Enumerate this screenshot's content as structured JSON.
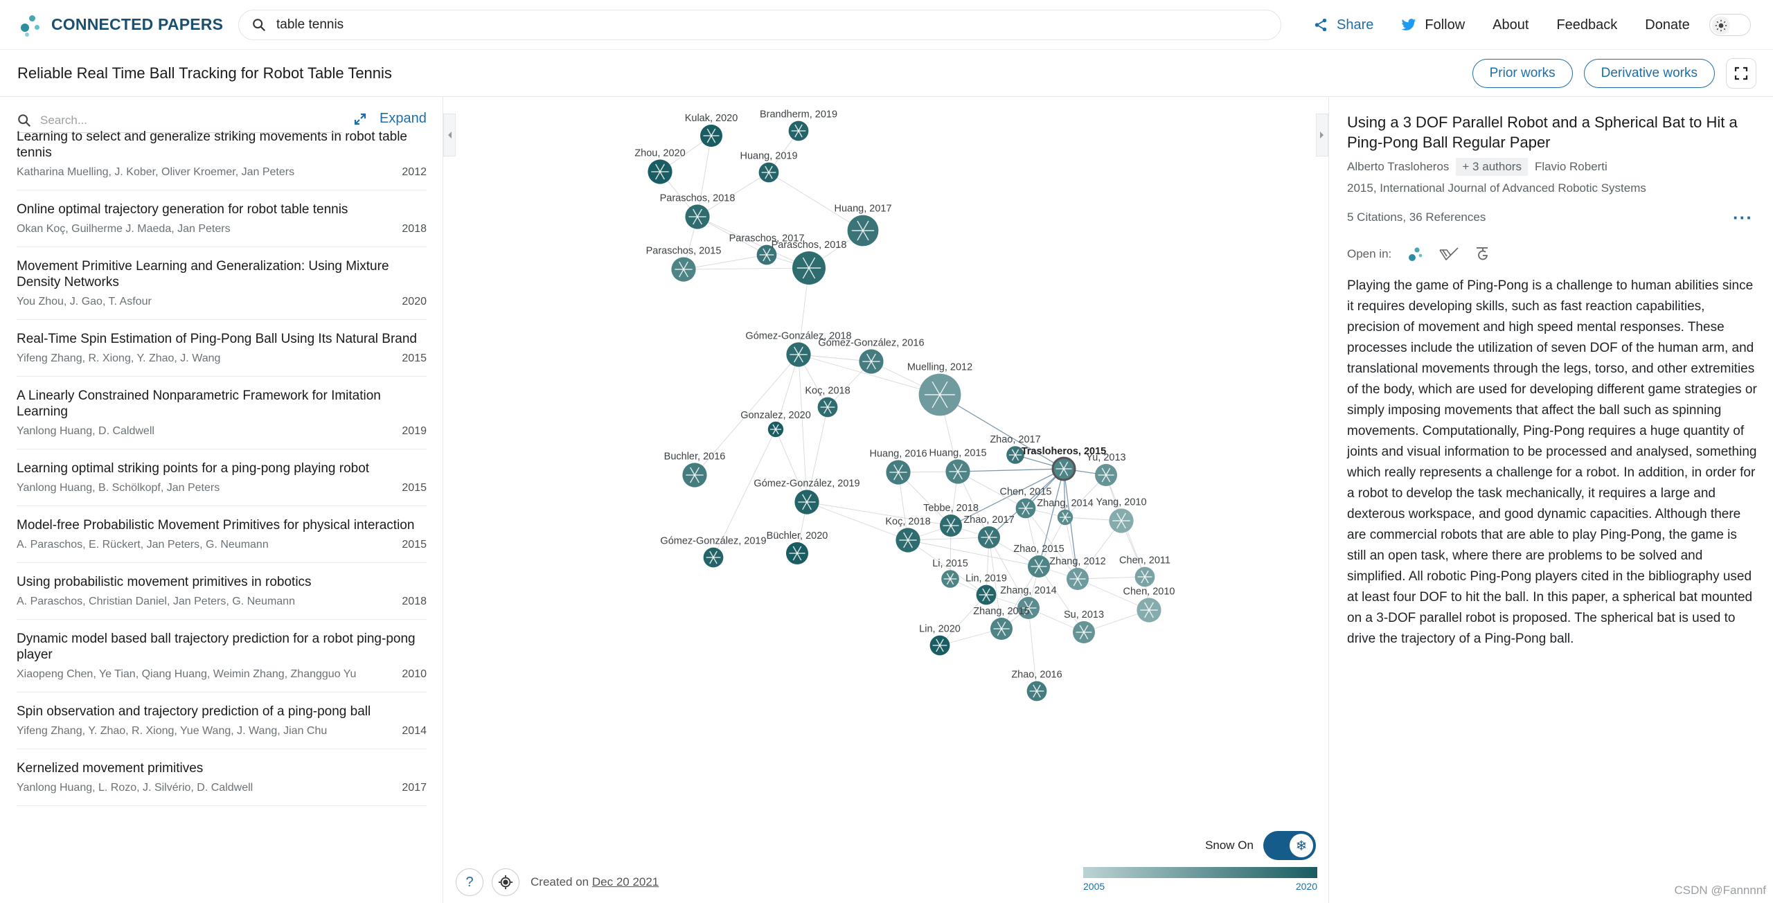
{
  "brand": {
    "name": "CONNECTED PAPERS"
  },
  "search": {
    "value": "table tennis"
  },
  "nav": {
    "share": "Share",
    "follow": "Follow",
    "about": "About",
    "feedback": "Feedback",
    "donate": "Donate"
  },
  "page_title": "Reliable Real Time Ball Tracking for Robot Table Tennis",
  "buttons": {
    "prior": "Prior works",
    "derivative": "Derivative works"
  },
  "list": {
    "search_placeholder": "Search...",
    "expand_label": "Expand",
    "papers": [
      {
        "title": "Learning to select and generalize striking movements in robot table tennis",
        "authors": "Katharina Muelling, J. Kober, Oliver Kroemer, Jan Peters",
        "year": "2012"
      },
      {
        "title": "Online optimal trajectory generation for robot table tennis",
        "authors": "Okan Koç, Guilherme J. Maeda, Jan Peters",
        "year": "2018"
      },
      {
        "title": "Movement Primitive Learning and Generalization: Using Mixture Density Networks",
        "authors": "You Zhou, J. Gao, T. Asfour",
        "year": "2020"
      },
      {
        "title": "Real-Time Spin Estimation of Ping-Pong Ball Using Its Natural Brand",
        "authors": "Yifeng Zhang, R. Xiong, Y. Zhao, J. Wang",
        "year": "2015"
      },
      {
        "title": "A Linearly Constrained Nonparametric Framework for Imitation Learning",
        "authors": "Yanlong Huang, D. Caldwell",
        "year": "2019"
      },
      {
        "title": "Learning optimal striking points for a ping-pong playing robot",
        "authors": "Yanlong Huang, B. Schölkopf, Jan Peters",
        "year": "2015"
      },
      {
        "title": "Model-free Probabilistic Movement Primitives for physical interaction",
        "authors": "A. Paraschos, E. Rückert, Jan Peters, G. Neumann",
        "year": "2015"
      },
      {
        "title": "Using probabilistic movement primitives in robotics",
        "authors": "A. Paraschos, Christian Daniel, Jan Peters, G. Neumann",
        "year": "2018"
      },
      {
        "title": "Dynamic model based ball trajectory prediction for a robot ping-pong player",
        "authors": "Xiaopeng Chen, Ye Tian, Qiang Huang, Weimin Zhang, Zhangguo Yu",
        "year": "2010"
      },
      {
        "title": "Spin observation and trajectory prediction of a ping-pong ball",
        "authors": "Yifeng Zhang, Y. Zhao, R. Xiong, Yue Wang, J. Wang, Jian Chu",
        "year": "2014"
      },
      {
        "title": "Kernelized movement primitives",
        "authors": "Yanlong Huang, L. Rozo, J. Silvério, D. Caldwell",
        "year": "2017"
      }
    ]
  },
  "graph": {
    "nodes": [
      {
        "label": "Kulak, 2020",
        "year": 2020,
        "size": 1.0,
        "selected": false
      },
      {
        "label": "Brandherm, 2019",
        "year": 2019,
        "size": 0.9,
        "selected": false
      },
      {
        "label": "Zhou, 2020",
        "year": 2020,
        "size": 1.1,
        "selected": false
      },
      {
        "label": "Huang, 2019",
        "year": 2019,
        "size": 0.9,
        "selected": false
      },
      {
        "label": "Paraschos, 2018",
        "year": 2018,
        "size": 1.1,
        "selected": false
      },
      {
        "label": "Huang, 2017",
        "year": 2017,
        "size": 1.4,
        "selected": false
      },
      {
        "label": "Paraschos, 2017",
        "year": 2017,
        "size": 0.9,
        "selected": false
      },
      {
        "label": "Paraschos, 2015",
        "year": 2015,
        "size": 1.1,
        "selected": false
      },
      {
        "label": "Paraschos, 2018",
        "year": 2018,
        "size": 1.5,
        "selected": false
      },
      {
        "label": "Gómez-González, 2018",
        "year": 2018,
        "size": 1.1,
        "selected": false
      },
      {
        "label": "Gómez-González, 2016",
        "year": 2016,
        "size": 1.1,
        "selected": false
      },
      {
        "label": "Muelling, 2012",
        "year": 2012,
        "size": 1.9,
        "selected": false
      },
      {
        "label": "Koç, 2018",
        "year": 2018,
        "size": 0.9,
        "selected": false
      },
      {
        "label": "Gonzalez, 2020",
        "year": 2020,
        "size": 0.7,
        "selected": false
      },
      {
        "label": "Buchler, 2016",
        "year": 2016,
        "size": 1.1,
        "selected": false
      },
      {
        "label": "Zhao, 2017",
        "year": 2017,
        "size": 0.8,
        "selected": false
      },
      {
        "label": "Trasloheros, 2015",
        "year": 2015,
        "size": 1.0,
        "selected": true
      },
      {
        "label": "Yu, 2013",
        "year": 2013,
        "size": 1.0,
        "selected": false
      },
      {
        "label": "Huang, 2016",
        "year": 2016,
        "size": 1.1,
        "selected": false
      },
      {
        "label": "Huang, 2015",
        "year": 2015,
        "size": 1.1,
        "selected": false
      },
      {
        "label": "Gómez-González, 2019",
        "year": 2019,
        "size": 1.1,
        "selected": false
      },
      {
        "label": "Chen, 2015",
        "year": 2015,
        "size": 0.9,
        "selected": false
      },
      {
        "label": "Zhang, 2014",
        "year": 2014,
        "size": 0.7,
        "selected": false
      },
      {
        "label": "Yang, 2010",
        "year": 2010,
        "size": 1.1,
        "selected": false
      },
      {
        "label": "Tebbe, 2018",
        "year": 2018,
        "size": 1.0,
        "selected": false
      },
      {
        "label": "Zhao, 2017",
        "year": 2017,
        "size": 1.0,
        "selected": false
      },
      {
        "label": "Koç, 2018",
        "year": 2018,
        "size": 1.1,
        "selected": false
      },
      {
        "label": "Büchler, 2020",
        "year": 2020,
        "size": 1.0,
        "selected": false
      },
      {
        "label": "Gómez-González, 2019",
        "year": 2019,
        "size": 0.9,
        "selected": false
      },
      {
        "label": "Zhao, 2015",
        "year": 2015,
        "size": 1.0,
        "selected": false
      },
      {
        "label": "Zhang, 2012",
        "year": 2012,
        "size": 1.0,
        "selected": false
      },
      {
        "label": "Chen, 2011",
        "year": 2011,
        "size": 0.9,
        "selected": false
      },
      {
        "label": "Li, 2015",
        "year": 2015,
        "size": 0.8,
        "selected": false
      },
      {
        "label": "Lin, 2019",
        "year": 2019,
        "size": 0.9,
        "selected": false
      },
      {
        "label": "Zhang, 2014",
        "year": 2014,
        "size": 1.0,
        "selected": false
      },
      {
        "label": "Chen, 2010",
        "year": 2010,
        "size": 1.1,
        "selected": false
      },
      {
        "label": "Zhang, 2015",
        "year": 2015,
        "size": 1.0,
        "selected": false
      },
      {
        "label": "Su, 2013",
        "year": 2013,
        "size": 1.0,
        "selected": false
      },
      {
        "label": "Lin, 2020",
        "year": 2020,
        "size": 0.9,
        "selected": false
      },
      {
        "label": "Zhao, 2016",
        "year": 2016,
        "size": 0.9,
        "selected": false
      }
    ],
    "snow_label": "Snow On",
    "created_prefix": "Created on",
    "created_date": "Dec 20 2021",
    "legend_min": "2005",
    "legend_max": "2020"
  },
  "detail": {
    "title": "Using a 3 DOF Parallel Robot and a Spherical Bat to Hit a Ping-Pong Ball Regular Paper",
    "first_author": "Alberto Trasloheros",
    "more_authors": "+ 3 authors",
    "last_author": "Flavio Roberti",
    "venue": "2015, International Journal of Advanced Robotic Systems",
    "citations": "5 Citations, 36 References",
    "open_in": "Open in:",
    "abstract": "Playing the game of Ping-Pong is a challenge to human abilities since it requires developing skills, such as fast reaction capabilities, precision of movement and high speed mental responses. These processes include the utilization of seven DOF of the human arm, and translational movements through the legs, torso, and other extremities of the body, which are used for developing different game strategies or simply imposing movements that affect the ball such as spinning movements. Computationally, Ping-Pong requires a huge quantity of joints and visual information to be processed and analysed, something which really represents a challenge for a robot. In addition, in order for a robot to develop the task mechanically, it requires a large and dexterous workspace, and good dynamic capacities. Although there are commercial robots that are able to play Ping-Pong, the game is still an open task, where there are problems to be solved and simplified. All robotic Ping-Pong players cited in the bibliography used at least four DOF to hit the ball. In this paper, a spherical bat mounted on a 3-DOF parallel robot is proposed. The spherical bat is used to drive the trajectory of a Ping-Pong ball."
  },
  "watermark": "CSDN @Fannnnf",
  "colors": {
    "accent": "#1d6ea8",
    "node_old": "#bcd3d3",
    "node_new": "#195c61"
  }
}
